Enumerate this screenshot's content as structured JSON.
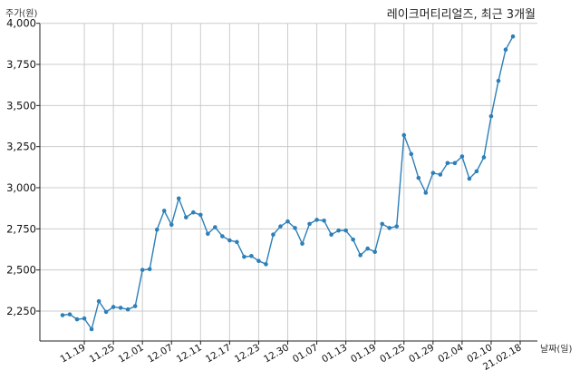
{
  "chart_data": {
    "type": "line",
    "title": "레이크머티리얼즈, 최근 3개월",
    "xlabel": "날짜(일)",
    "ylabel": "주가(원)",
    "ylim": [
      2100,
      4000
    ],
    "yticks": [
      "2,250",
      "2,500",
      "2,750",
      "3,000",
      "3,250",
      "3,500",
      "3,750",
      "4,000"
    ],
    "ytick_values": [
      2250,
      2500,
      2750,
      3000,
      3250,
      3500,
      3750,
      4000
    ],
    "xticks": [
      "11.19",
      "11.25",
      "12.01",
      "12.07",
      "12.11",
      "12.17",
      "12.23",
      "12.30",
      "01.07",
      "01.13",
      "01.19",
      "01.25",
      "01.29",
      "02.04",
      "02.10",
      "21.02.18"
    ],
    "xtick_index": [
      3,
      7,
      11,
      15,
      19,
      23,
      27,
      31,
      35,
      39,
      43,
      47,
      51,
      55,
      59,
      63
    ],
    "grid": true,
    "colors": {
      "line": "#2d7fb8",
      "grid": "#cccccc",
      "axis": "#222222"
    },
    "series": [
      {
        "values": [
          2225,
          2230,
          2200,
          2205,
          2140,
          2310,
          2245,
          2275,
          2270,
          2260,
          2280,
          2500,
          2505,
          2745,
          2860,
          2775,
          2935,
          2820,
          2850,
          2835,
          2720,
          2760,
          2705,
          2680,
          2670,
          2580,
          2585,
          2555,
          2535,
          2715,
          2765,
          2795,
          2755,
          2660,
          2780,
          2805,
          2800,
          2715,
          2740,
          2740,
          2685,
          2590,
          2630,
          2610,
          2780,
          2755,
          2765,
          3320,
          3205,
          3060,
          2970,
          3090,
          3080,
          3150,
          3150,
          3190,
          3055,
          3100,
          3185,
          3435,
          3650,
          3840,
          3920
        ]
      }
    ]
  }
}
